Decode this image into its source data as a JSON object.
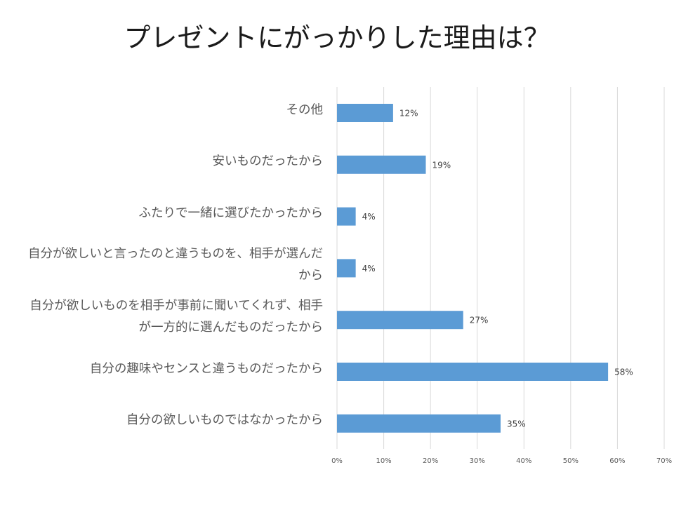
{
  "chart_data": {
    "type": "bar",
    "orientation": "horizontal",
    "title": "プレゼントにがっかりした理由は？",
    "xlabel": "",
    "ylabel": "",
    "xlim": [
      0,
      70
    ],
    "xticks": [
      "0%",
      "10%",
      "20%",
      "30%",
      "40%",
      "50%",
      "60%",
      "70%"
    ],
    "grid": true,
    "legend": "none",
    "bar_color": "#5b9bd5",
    "categories": [
      "その他",
      "安いものだったから",
      "ふたりで一緒に選びたかったから",
      "自分が欲しいと言ったのと違うものを、相手が選んだから",
      "自分が欲しいものを相手が事前に聞いてくれず、相手が一方的に選んだものだったから",
      "自分の趣味やセンスと違うものだったから",
      "自分の欲しいものではなかったから"
    ],
    "category_label_lines": [
      [
        "その他"
      ],
      [
        "安いものだったから"
      ],
      [
        "ふたりで一緒に選びたかったから"
      ],
      [
        "自分が欲しいと言ったのと違うものを、相手が選んだ",
        "から"
      ],
      [
        "自分が欲しいものを相手が事前に聞いてくれず、相手",
        "が一方的に選んだものだったから"
      ],
      [
        "自分の趣味やセンスと違うものだったから"
      ],
      [
        "自分の欲しいものではなかったから"
      ]
    ],
    "values": [
      12,
      19,
      4,
      4,
      27,
      58,
      35
    ],
    "value_labels": [
      "12%",
      "19%",
      "4%",
      "4%",
      "27%",
      "58%",
      "35%"
    ]
  }
}
